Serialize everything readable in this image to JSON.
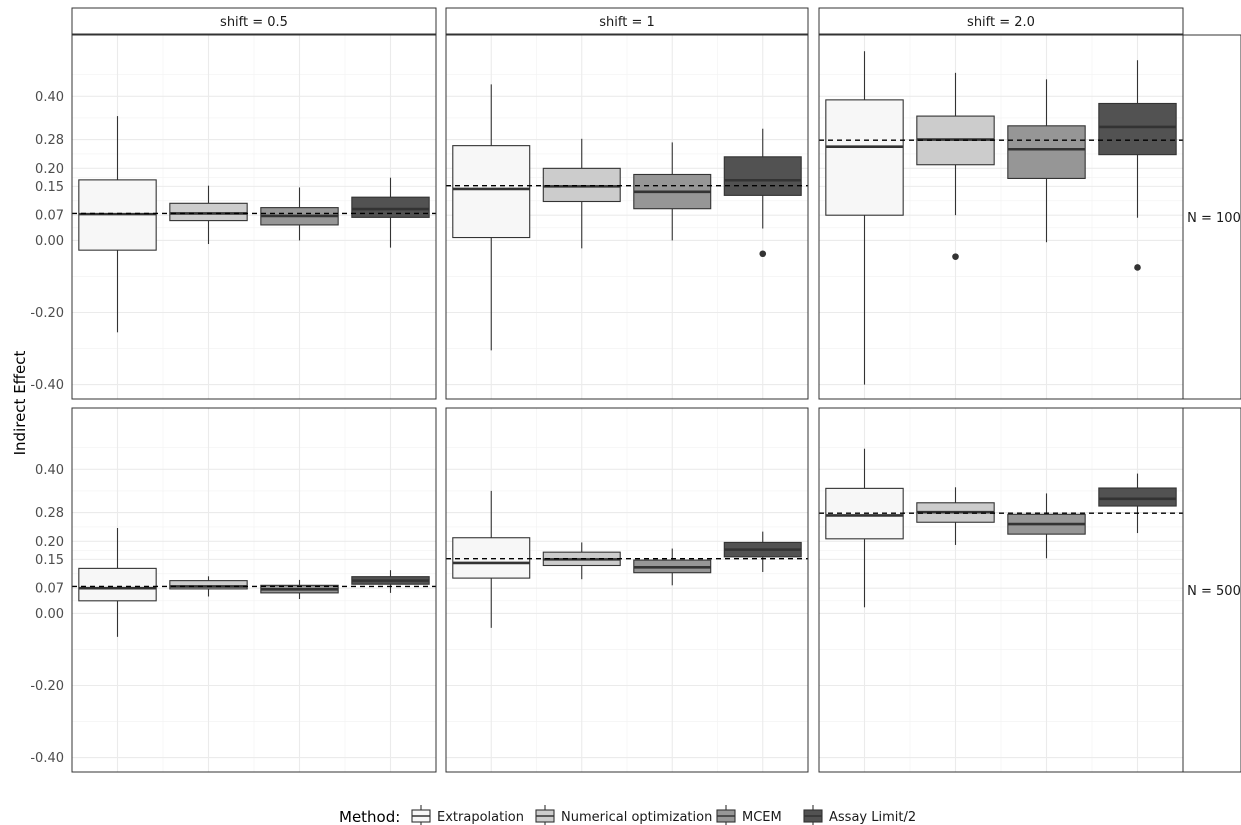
{
  "chart_data": {
    "type": "boxplot",
    "ylabel": "Indirect Effect",
    "xlabel": "",
    "y_ticks": [
      -0.4,
      -0.2,
      0.0,
      0.07,
      0.15,
      0.2,
      0.28,
      0.4
    ],
    "y_tick_labels": [
      "-0.40",
      "-0.20",
      "0.00",
      "0.07",
      "0.15",
      "0.20",
      "0.28",
      "0.40"
    ],
    "ylim": [
      -0.44,
      0.57
    ],
    "grid": true,
    "col_facets": [
      "shift = 0.5",
      "shift = 1",
      "shift = 2.0"
    ],
    "row_facets": [
      "N = 100",
      "N = 500"
    ],
    "legend": {
      "title": "Method:",
      "position": "bottom",
      "entries": [
        {
          "label": "Extrapolation",
          "color": "#f7f7f7"
        },
        {
          "label": "Numerical optimization",
          "color": "#cccccc"
        },
        {
          "label": "MCEM",
          "color": "#969696"
        },
        {
          "label": "Assay Limit/2",
          "color": "#525252"
        }
      ]
    },
    "panels": [
      {
        "row": 0,
        "col": 0,
        "true_value": 0.075,
        "boxes": [
          {
            "method": "Extrapolation",
            "min": -0.255,
            "q1": -0.027,
            "median": 0.073,
            "q3": 0.168,
            "max": 0.345,
            "outliers": []
          },
          {
            "method": "Numerical optimization",
            "min": -0.01,
            "q1": 0.055,
            "median": 0.075,
            "q3": 0.103,
            "max": 0.152,
            "outliers": []
          },
          {
            "method": "MCEM",
            "min": 0.0,
            "q1": 0.043,
            "median": 0.068,
            "q3": 0.091,
            "max": 0.147,
            "outliers": []
          },
          {
            "method": "Assay Limit/2",
            "min": -0.02,
            "q1": 0.064,
            "median": 0.087,
            "q3": 0.12,
            "max": 0.174,
            "outliers": []
          }
        ]
      },
      {
        "row": 0,
        "col": 1,
        "true_value": 0.152,
        "boxes": [
          {
            "method": "Extrapolation",
            "min": -0.305,
            "q1": 0.008,
            "median": 0.143,
            "q3": 0.263,
            "max": 0.433,
            "outliers": []
          },
          {
            "method": "Numerical optimization",
            "min": -0.022,
            "q1": 0.108,
            "median": 0.15,
            "q3": 0.2,
            "max": 0.282,
            "outliers": []
          },
          {
            "method": "MCEM",
            "min": 0.0,
            "q1": 0.088,
            "median": 0.135,
            "q3": 0.183,
            "max": 0.272,
            "outliers": []
          },
          {
            "method": "Assay Limit/2",
            "min": 0.033,
            "q1": 0.125,
            "median": 0.167,
            "q3": 0.232,
            "max": 0.31,
            "outliers": [
              -0.037
            ]
          }
        ]
      },
      {
        "row": 0,
        "col": 2,
        "true_value": 0.278,
        "boxes": [
          {
            "method": "Extrapolation",
            "min": -0.4,
            "q1": 0.07,
            "median": 0.26,
            "q3": 0.39,
            "max": 0.525,
            "outliers": []
          },
          {
            "method": "Numerical optimization",
            "min": 0.07,
            "q1": 0.21,
            "median": 0.28,
            "q3": 0.345,
            "max": 0.465,
            "outliers": [
              -0.045
            ]
          },
          {
            "method": "MCEM",
            "min": -0.005,
            "q1": 0.172,
            "median": 0.253,
            "q3": 0.318,
            "max": 0.447,
            "outliers": []
          },
          {
            "method": "Assay Limit/2",
            "min": 0.063,
            "q1": 0.238,
            "median": 0.315,
            "q3": 0.38,
            "max": 0.5,
            "outliers": [
              -0.075
            ]
          }
        ]
      },
      {
        "row": 1,
        "col": 0,
        "true_value": 0.075,
        "boxes": [
          {
            "method": "Extrapolation",
            "min": -0.065,
            "q1": 0.035,
            "median": 0.07,
            "q3": 0.125,
            "max": 0.237,
            "outliers": []
          },
          {
            "method": "Numerical optimization",
            "min": 0.047,
            "q1": 0.068,
            "median": 0.075,
            "q3": 0.091,
            "max": 0.103,
            "outliers": []
          },
          {
            "method": "MCEM",
            "min": 0.04,
            "q1": 0.057,
            "median": 0.067,
            "q3": 0.078,
            "max": 0.093,
            "outliers": []
          },
          {
            "method": "Assay Limit/2",
            "min": 0.057,
            "q1": 0.081,
            "median": 0.091,
            "q3": 0.102,
            "max": 0.12,
            "outliers": []
          }
        ]
      },
      {
        "row": 1,
        "col": 1,
        "true_value": 0.152,
        "boxes": [
          {
            "method": "Extrapolation",
            "min": -0.04,
            "q1": 0.098,
            "median": 0.14,
            "q3": 0.21,
            "max": 0.34,
            "outliers": []
          },
          {
            "method": "Numerical optimization",
            "min": 0.095,
            "q1": 0.133,
            "median": 0.15,
            "q3": 0.17,
            "max": 0.197,
            "outliers": []
          },
          {
            "method": "MCEM",
            "min": 0.078,
            "q1": 0.113,
            "median": 0.128,
            "q3": 0.148,
            "max": 0.18,
            "outliers": []
          },
          {
            "method": "Assay Limit/2",
            "min": 0.115,
            "q1": 0.157,
            "median": 0.177,
            "q3": 0.197,
            "max": 0.227,
            "outliers": []
          }
        ]
      },
      {
        "row": 1,
        "col": 2,
        "true_value": 0.278,
        "boxes": [
          {
            "method": "Extrapolation",
            "min": 0.017,
            "q1": 0.207,
            "median": 0.272,
            "q3": 0.347,
            "max": 0.457,
            "outliers": []
          },
          {
            "method": "Numerical optimization",
            "min": 0.19,
            "q1": 0.253,
            "median": 0.281,
            "q3": 0.307,
            "max": 0.35,
            "outliers": []
          },
          {
            "method": "MCEM",
            "min": 0.153,
            "q1": 0.22,
            "median": 0.248,
            "q3": 0.275,
            "max": 0.333,
            "outliers": []
          },
          {
            "method": "Assay Limit/2",
            "min": 0.223,
            "q1": 0.298,
            "median": 0.318,
            "q3": 0.348,
            "max": 0.388,
            "outliers": []
          }
        ]
      }
    ]
  }
}
